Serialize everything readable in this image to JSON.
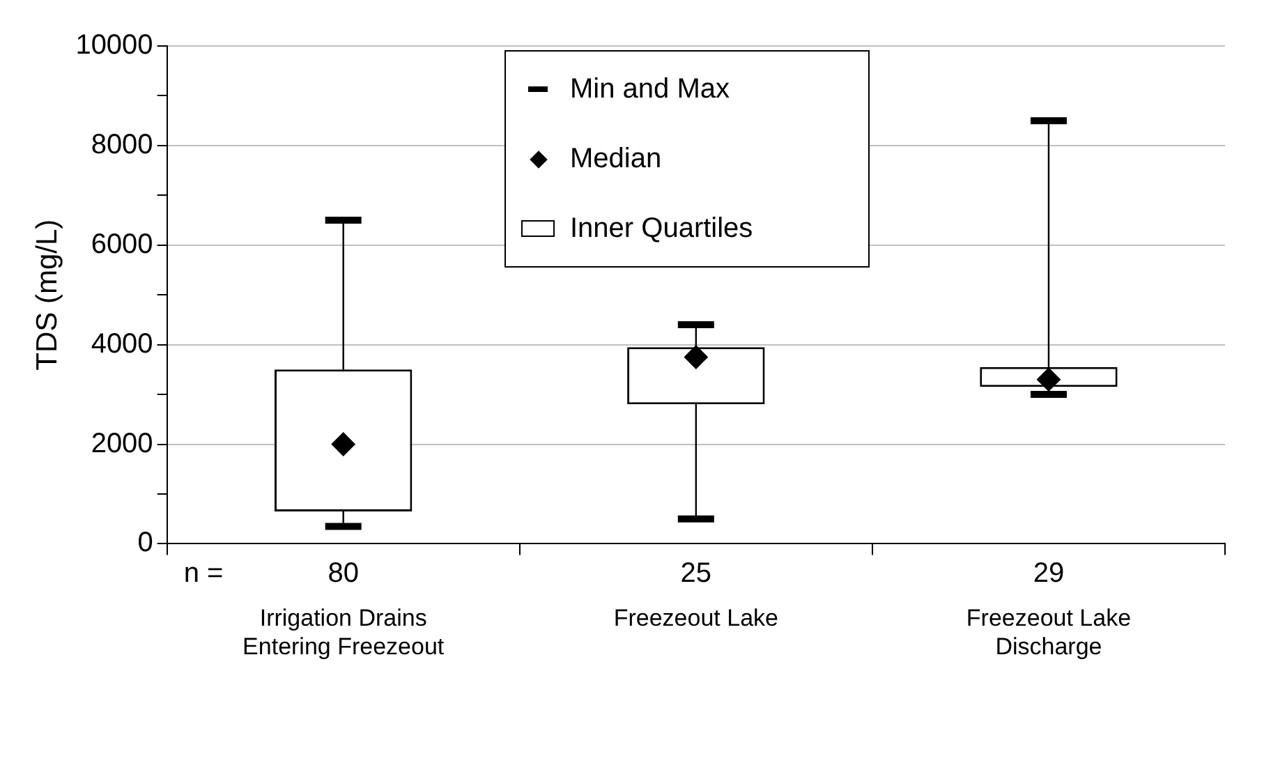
{
  "chart_data": {
    "type": "box",
    "ylabel": "TDS (mg/L)",
    "categories": [
      "Irrigation Drains Entering Freezeout",
      "Freezeout Lake",
      "Freezeout Lake Discharge"
    ],
    "boxes": [
      {
        "low": 350,
        "q1": 650,
        "median": 2000,
        "q3": 3500,
        "high": 6500
      },
      {
        "low": 500,
        "q1": 2800,
        "median": 3750,
        "q3": 3950,
        "high": 4400
      },
      {
        "low": 3000,
        "q1": 3150,
        "median": 3300,
        "q3": 3550,
        "high": 8500
      }
    ],
    "color": "#000000",
    "ylim": [
      0,
      10000
    ],
    "yticks": [
      0,
      {
        "value": 1000,
        "label": null
      },
      2000,
      {
        "value": 3000,
        "label": null
      },
      4000,
      {
        "value": 5000,
        "label": null
      },
      6000,
      {
        "value": 7000,
        "label": null
      },
      8000,
      {
        "value": 9000,
        "label": null
      },
      10000
    ],
    "grid": "y",
    "annotations": [
      "Min and Max",
      "Median",
      "Inner Quartiles",
      "n =",
      "80",
      "25",
      "29"
    ]
  }
}
